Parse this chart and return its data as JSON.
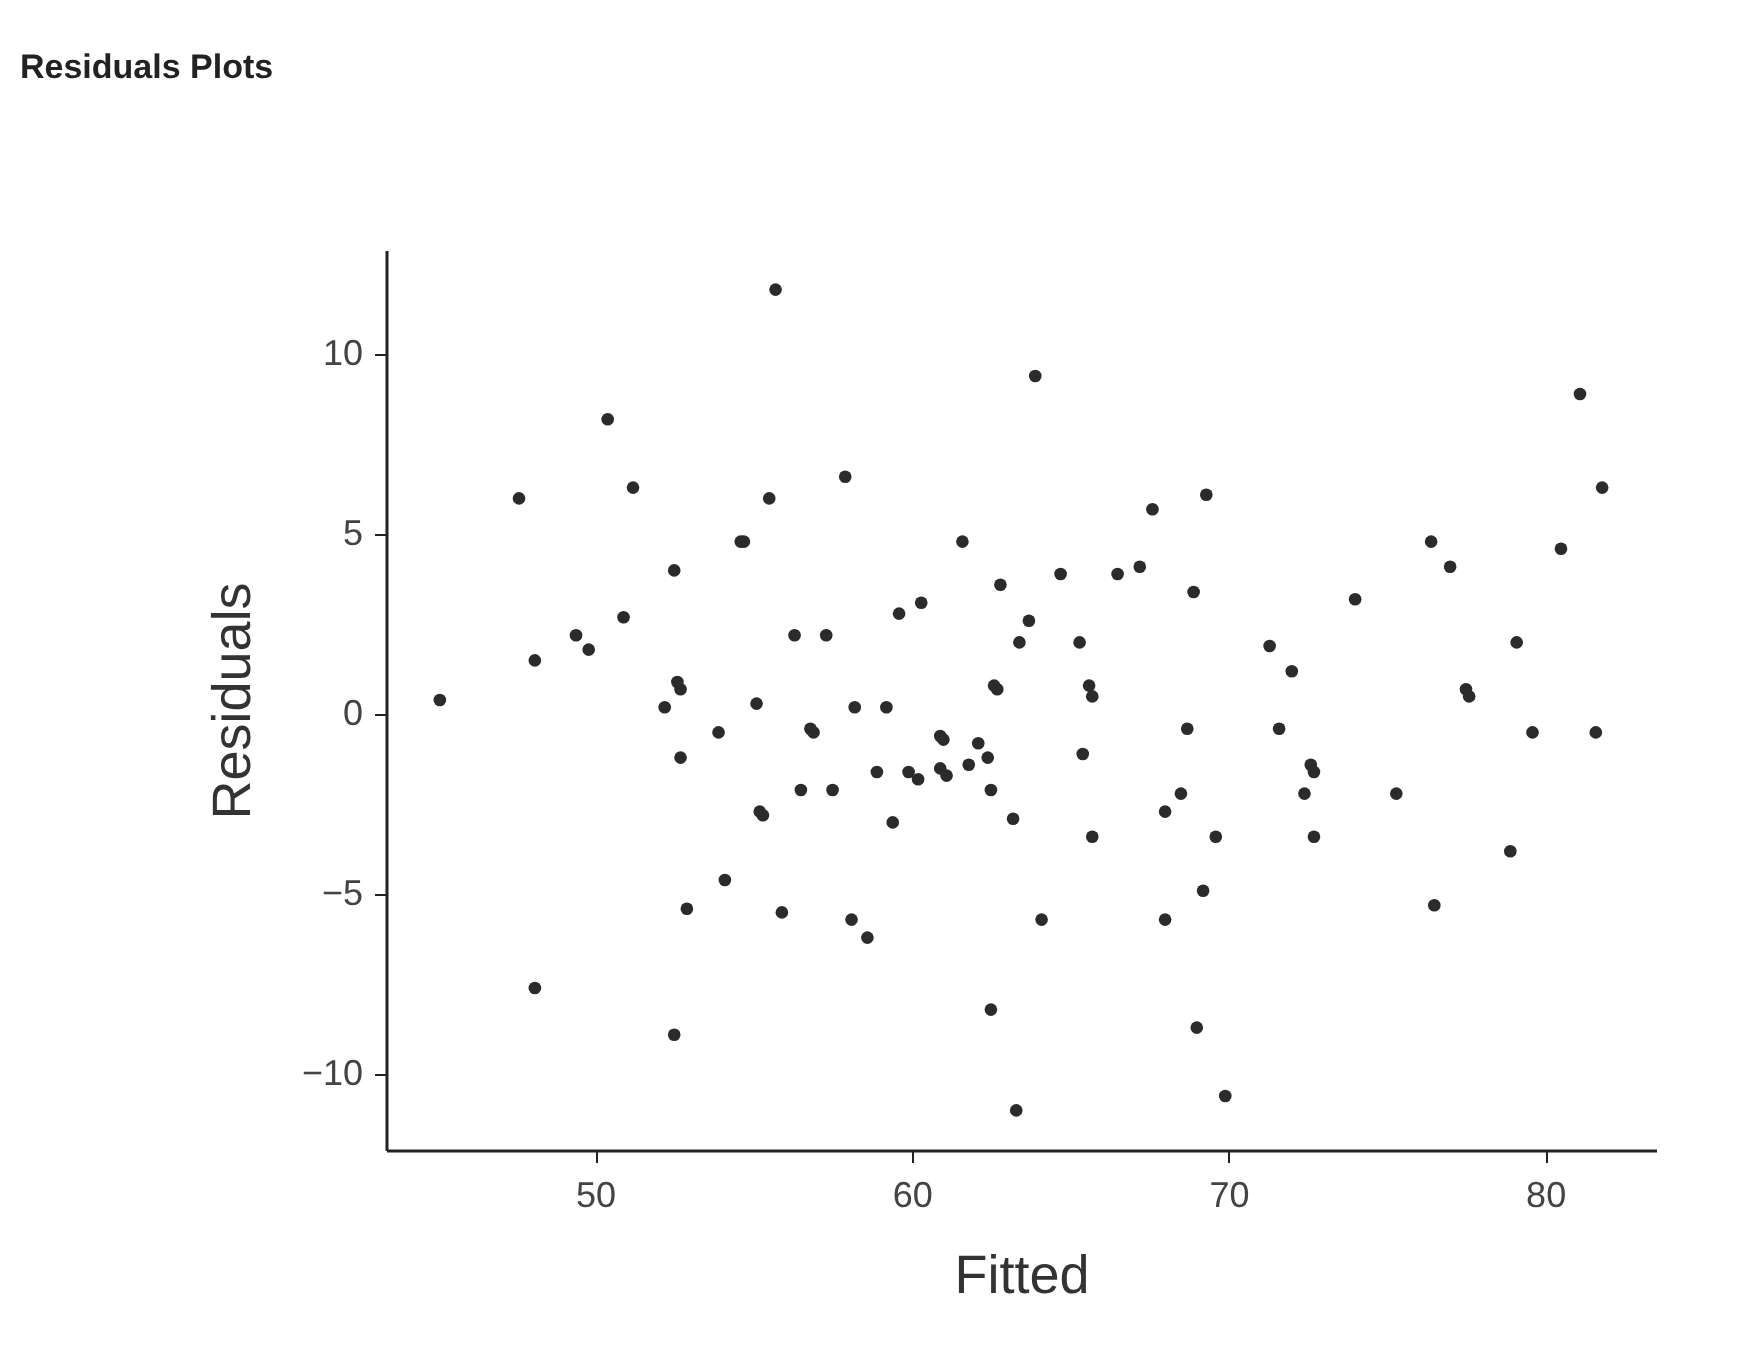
{
  "chart_data": {
    "type": "scatter",
    "title": "Residuals Plots",
    "xlabel": "Fitted",
    "ylabel": "Residuals",
    "xlim": [
      43.4,
      83.5
    ],
    "ylim": [
      -12.1,
      12.9
    ],
    "xticks": [
      50,
      60,
      70,
      80
    ],
    "yticks": [
      -10,
      -5,
      0,
      5,
      10
    ],
    "grid": false,
    "marker": "circle",
    "series": [
      {
        "color": "#2b2b2b",
        "x": [
          45.1,
          47.6,
          48.1,
          48.1,
          49.4,
          49.8,
          50.4,
          50.9,
          51.2,
          52.2,
          52.5,
          52.6,
          52.7,
          52.7,
          52.5,
          52.9,
          53.9,
          54.1,
          54.6,
          54.7,
          55.1,
          55.2,
          55.3,
          55.5,
          55.7,
          55.9,
          56.3,
          56.5,
          56.8,
          56.9,
          57.3,
          57.5,
          57.9,
          58.1,
          58.2,
          58.6,
          58.9,
          59.2,
          59.4,
          59.6,
          59.9,
          60.2,
          60.3,
          60.9,
          61.0,
          60.9,
          61.1,
          61.6,
          61.8,
          62.1,
          62.4,
          62.5,
          62.5,
          62.6,
          62.7,
          62.8,
          63.2,
          63.4,
          63.3,
          63.7,
          63.9,
          64.1,
          64.7,
          65.3,
          65.4,
          65.6,
          65.7,
          65.7,
          66.5,
          67.2,
          67.6,
          68.0,
          68.0,
          68.5,
          68.7,
          68.9,
          69.0,
          69.2,
          69.3,
          69.6,
          69.9,
          71.3,
          71.6,
          72.0,
          72.4,
          72.6,
          72.7,
          72.7,
          74.0,
          75.3,
          76.4,
          76.5,
          77.0,
          77.5,
          77.6,
          78.9,
          79.1,
          79.6,
          80.5,
          81.1,
          81.6,
          81.8
        ],
        "values": [
          0.4,
          6.0,
          1.5,
          -7.6,
          2.2,
          1.8,
          8.2,
          2.7,
          6.3,
          0.2,
          4.0,
          0.9,
          0.7,
          -1.2,
          -8.9,
          -5.4,
          -0.5,
          -4.6,
          4.8,
          4.8,
          0.3,
          -2.7,
          -2.8,
          6.0,
          11.8,
          -5.5,
          2.2,
          -2.1,
          -0.4,
          -0.5,
          2.2,
          -2.1,
          6.6,
          -5.7,
          0.2,
          -6.2,
          -1.6,
          0.2,
          -3.0,
          2.8,
          -1.6,
          -1.8,
          3.1,
          -0.6,
          -0.7,
          -1.5,
          -1.7,
          4.8,
          -1.4,
          -0.8,
          -1.2,
          -2.1,
          -8.2,
          0.8,
          0.7,
          3.6,
          -2.9,
          2.0,
          -11.0,
          2.6,
          9.4,
          -5.7,
          3.9,
          2.0,
          -1.1,
          0.8,
          0.5,
          -3.4,
          3.9,
          4.1,
          5.7,
          -2.7,
          -5.7,
          -2.2,
          -0.4,
          3.4,
          -8.7,
          -4.9,
          6.1,
          -3.4,
          -10.6,
          1.9,
          -0.4,
          1.2,
          -2.2,
          -1.4,
          -1.6,
          -3.4,
          3.2,
          -2.2,
          4.8,
          -5.3,
          4.1,
          0.7,
          0.5,
          -3.8,
          2.0,
          -0.5,
          4.6,
          8.9,
          -0.5,
          6.3
        ]
      }
    ]
  }
}
